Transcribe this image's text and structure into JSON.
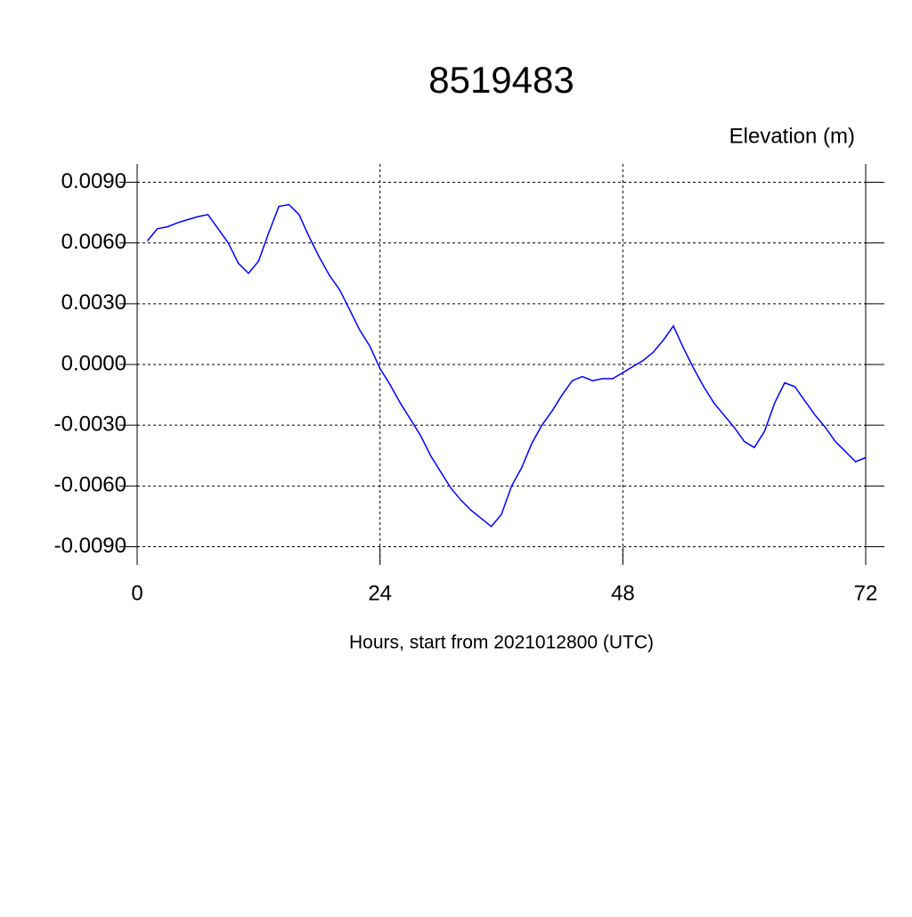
{
  "chart_data": {
    "type": "line",
    "title": "8519483",
    "subtitle": "Elevation (m)",
    "x_label": "Hours, start from 2021012800 (UTC)",
    "x": [
      1,
      2,
      3,
      4,
      5,
      6,
      7,
      8,
      9,
      10,
      11,
      12,
      13,
      14,
      15,
      16,
      17,
      18,
      19,
      20,
      21,
      22,
      23,
      24,
      25,
      26,
      27,
      28,
      29,
      30,
      31,
      32,
      33,
      34,
      35,
      36,
      37,
      38,
      39,
      40,
      41,
      42,
      43,
      44,
      45,
      46,
      47,
      48,
      49,
      50,
      51,
      52,
      53,
      54,
      55,
      56,
      57,
      58,
      59,
      60,
      61,
      62,
      63,
      64,
      65,
      66,
      67,
      68,
      69,
      70,
      71,
      72
    ],
    "series": [
      {
        "name": "Elevation",
        "color": "#0000ff",
        "values": [
          0.0061,
          0.0067,
          0.0068,
          0.007,
          0.00715,
          0.0073,
          0.0074,
          0.0067,
          0.006,
          0.005,
          0.0045,
          0.0051,
          0.0065,
          0.0078,
          0.0079,
          0.0074,
          0.0063,
          0.0053,
          0.0044,
          0.0037,
          0.0027,
          0.0017,
          0.0009,
          -0.0002,
          -0.001,
          -0.0019,
          -0.0027,
          -0.0035,
          -0.0045,
          -0.0053,
          -0.0061,
          -0.0067,
          -0.0072,
          -0.0076,
          -0.008,
          -0.0074,
          -0.006,
          -0.0051,
          -0.0039,
          -0.003,
          -0.0023,
          -0.0015,
          -0.0008,
          -0.0006,
          -0.0008,
          -0.0007,
          -0.0007,
          -0.0004,
          -0.0001,
          0.0002,
          0.0006,
          0.0012,
          0.0019,
          0.0008,
          -0.0002,
          -0.0011,
          -0.0019,
          -0.0025,
          -0.0031,
          -0.0038,
          -0.0041,
          -0.0033,
          -0.0019,
          -0.0009,
          -0.0011,
          -0.0018,
          -0.0025,
          -0.0031,
          -0.0038,
          -0.0043,
          -0.0048,
          -0.0046
        ]
      }
    ],
    "xlim": [
      0,
      72
    ],
    "xticks": [
      0,
      24,
      48,
      72
    ],
    "ylim": [
      -0.0099,
      0.0099
    ],
    "yticks": [
      {
        "value": -0.009,
        "label": "-0.0090"
      },
      {
        "value": -0.006,
        "label": "-0.0060"
      },
      {
        "value": -0.003,
        "label": "-0.0030"
      },
      {
        "value": 0,
        "label": "0.0000"
      },
      {
        "value": 0.003,
        "label": "0.0030"
      },
      {
        "value": 0.006,
        "label": "0.0060"
      },
      {
        "value": 0.009,
        "label": "0.0090"
      }
    ],
    "grid": true
  }
}
